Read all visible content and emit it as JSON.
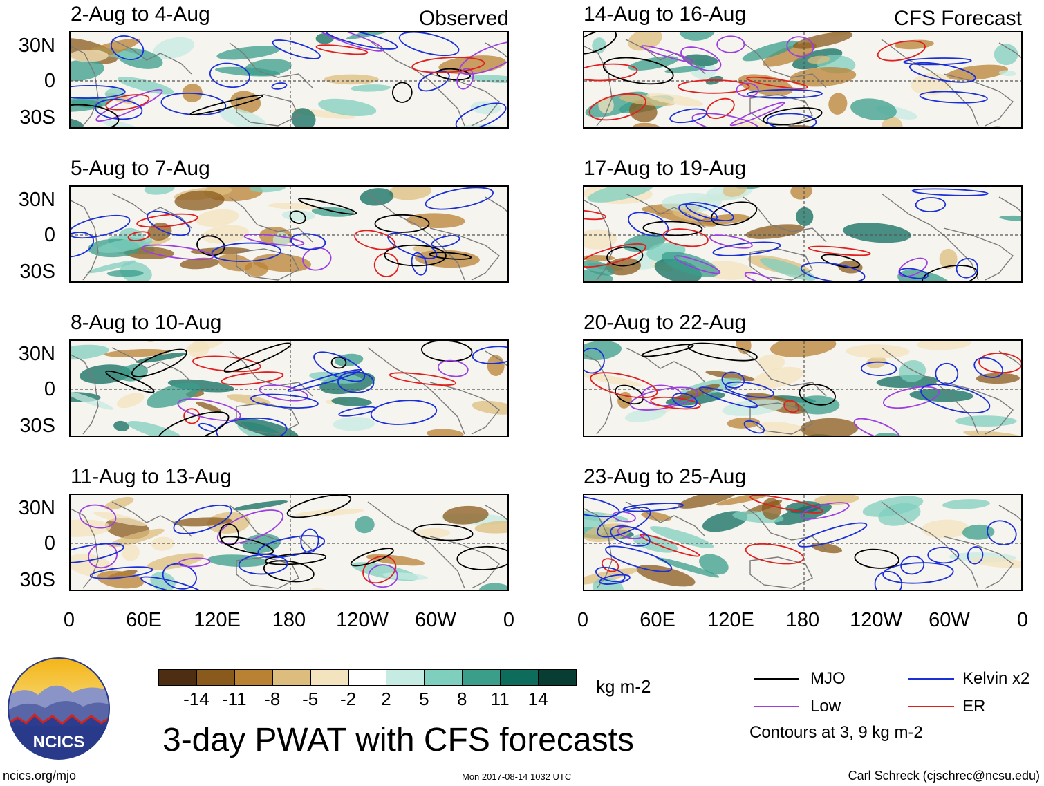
{
  "headers": {
    "left": "Observed",
    "right": "CFS Forecast"
  },
  "panels_left": [
    {
      "title": "2-Aug to 4-Aug"
    },
    {
      "title": "5-Aug to 7-Aug"
    },
    {
      "title": "8-Aug to 10-Aug"
    },
    {
      "title": "11-Aug to 13-Aug"
    }
  ],
  "panels_right": [
    {
      "title": "14-Aug to 16-Aug"
    },
    {
      "title": "17-Aug to 19-Aug"
    },
    {
      "title": "20-Aug to 22-Aug"
    },
    {
      "title": "23-Aug to 25-Aug"
    }
  ],
  "lat_labels": [
    "30N",
    "0",
    "30S"
  ],
  "lon_labels": [
    "0",
    "60E",
    "120E",
    "180",
    "120W",
    "60W",
    "0"
  ],
  "colorbar": {
    "ticks": [
      "-14",
      "-11",
      "-8",
      "-5",
      "-2",
      "2",
      "5",
      "8",
      "11",
      "14"
    ],
    "colors": [
      "#4e2e12",
      "#8a5a1c",
      "#b98233",
      "#dcbd7d",
      "#f3e3be",
      "#ffffff",
      "#c6ebe2",
      "#7fcfbe",
      "#3a9e8b",
      "#0e6c5d",
      "#073d33"
    ],
    "units": "kg m-2"
  },
  "legend": {
    "items": [
      {
        "label": "MJO",
        "color": "#000000"
      },
      {
        "label": "Kelvin x2",
        "color": "#1a2fd8"
      },
      {
        "label": "Low",
        "color": "#9b3fe0"
      },
      {
        "label": "ER",
        "color": "#e01f1f"
      }
    ],
    "note": "Contours at 3, 9 kg m-2"
  },
  "main_title": "3-day PWAT with CFS forecasts",
  "logo_text": "NCICS",
  "footer": {
    "left": "ncics.org/mjo",
    "center": "Mon 2017-08-14 1032 UTC",
    "right": "Carl Schreck (cjschrec@ncsu.edu)"
  }
}
